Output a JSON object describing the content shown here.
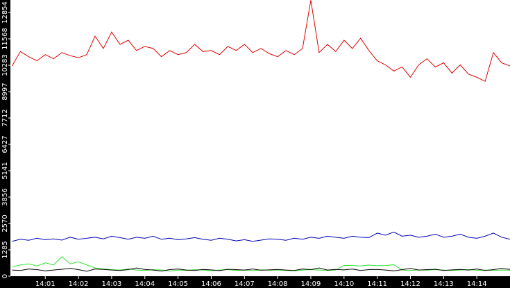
{
  "chart_data": {
    "type": "line",
    "x": [
      840,
      840.25,
      840.5,
      840.75,
      841,
      841.25,
      841.5,
      841.75,
      842,
      842.25,
      842.5,
      842.75,
      843,
      843.25,
      843.5,
      843.75,
      844,
      844.25,
      844.5,
      844.75,
      845,
      845.25,
      845.5,
      845.75,
      846,
      846.25,
      846.5,
      846.75,
      847,
      847.25,
      847.5,
      847.75,
      848,
      848.25,
      848.5,
      848.75,
      849,
      849.25,
      849.5,
      849.75,
      850,
      850.25,
      850.5,
      850.75,
      851,
      851.25,
      851.5,
      851.75,
      852,
      852.25,
      852.5,
      852.75,
      853,
      853.25,
      853.5,
      853.75,
      854,
      854.25,
      854.5,
      854.75,
      855
    ],
    "series": [
      {
        "color": "#e00000",
        "values": [
          10250,
          10950,
          10700,
          10500,
          10800,
          10600,
          10900,
          10750,
          10650,
          10800,
          11700,
          11100,
          11900,
          11300,
          11500,
          11000,
          11200,
          11100,
          10700,
          11000,
          10800,
          10900,
          11300,
          10950,
          11000,
          10800,
          11200,
          11000,
          11300,
          10900,
          11100,
          10850,
          10700,
          11000,
          10800,
          11100,
          13450,
          10900,
          11300,
          10950,
          11500,
          11100,
          11600,
          11000,
          10500,
          10300,
          10000,
          10200,
          9700,
          10300,
          10600,
          10200,
          10400,
          9900,
          10300,
          9850,
          9700,
          9500,
          10900,
          10400,
          10250
        ]
      },
      {
        "color": "#0000b0",
        "values": [
          1700,
          1800,
          1750,
          1850,
          1780,
          1820,
          1760,
          1900,
          1800,
          1850,
          1900,
          1820,
          1950,
          1880,
          1800,
          1900,
          1850,
          1950,
          1800,
          1850,
          1780,
          1820,
          1880,
          1800,
          1750,
          1850,
          1800,
          1720,
          1780,
          1700,
          1760,
          1820,
          1800,
          1750,
          1850,
          1800,
          1900,
          1850,
          1950,
          1900,
          1850,
          1950,
          1900,
          1880,
          2100,
          2000,
          2150,
          1950,
          2000,
          1900,
          1950,
          2050,
          1900,
          1950,
          2050,
          1900,
          1850,
          1950,
          2100,
          1900,
          1800
        ]
      },
      {
        "color": "#30e030",
        "values": [
          450,
          550,
          600,
          500,
          650,
          550,
          950,
          600,
          700,
          550,
          400,
          350,
          320,
          300,
          350,
          300,
          280,
          320,
          300,
          250,
          300,
          280,
          320,
          300,
          260,
          300,
          320,
          280,
          300,
          270,
          310,
          290,
          300,
          280,
          260,
          300,
          320,
          300,
          280,
          300,
          530,
          520,
          500,
          540,
          510,
          520,
          560,
          300,
          280,
          310,
          290,
          320,
          300,
          280,
          300,
          320,
          290,
          300,
          280,
          300,
          290
        ]
      },
      {
        "color": "#000000",
        "values": [
          300,
          280,
          350,
          320,
          260,
          300,
          340,
          380,
          320,
          240,
          350,
          330,
          300,
          280,
          320,
          400,
          330,
          300,
          250,
          320,
          350,
          300,
          280,
          330,
          310,
          270,
          340,
          320,
          300,
          350,
          290,
          310,
          330,
          300,
          280,
          350,
          320,
          400,
          300,
          330,
          310,
          350,
          280,
          320,
          330,
          300,
          260,
          320,
          380,
          300,
          320,
          340,
          280,
          310,
          330,
          300,
          350,
          280,
          320,
          380,
          330
        ]
      }
    ],
    "xlim": [
      839.95,
      855
    ],
    "xticks": [
      {
        "value": 841,
        "label": "14:01"
      },
      {
        "value": 842,
        "label": "14:02"
      },
      {
        "value": 843,
        "label": "14:03"
      },
      {
        "value": 844,
        "label": "14:04"
      },
      {
        "value": 845,
        "label": "14:05"
      },
      {
        "value": 846,
        "label": "14:06"
      },
      {
        "value": 847,
        "label": "14:07"
      },
      {
        "value": 848,
        "label": "14:08"
      },
      {
        "value": 849,
        "label": "14:09"
      },
      {
        "value": 850,
        "label": "14:10"
      },
      {
        "value": 851,
        "label": "14:11"
      },
      {
        "value": 852,
        "label": "14:12"
      },
      {
        "value": 853,
        "label": "14:13"
      },
      {
        "value": 854,
        "label": "14:14"
      }
    ],
    "ylim": [
      0,
      13463
    ],
    "yticks": [
      0,
      1285,
      2570,
      3856,
      5141,
      6427,
      7712,
      8997,
      10283,
      11568,
      12854
    ]
  }
}
